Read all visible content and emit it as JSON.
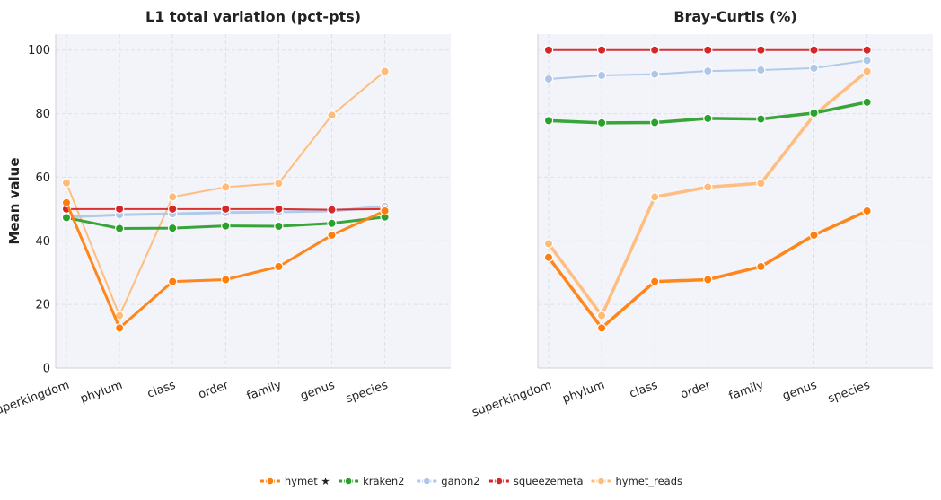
{
  "chart_data": [
    {
      "type": "line",
      "title": "L1 total variation (pct-pts)",
      "ylabel": "Mean value",
      "xlabel": "",
      "categories": [
        "superkingdom",
        "phylum",
        "class",
        "order",
        "family",
        "genus",
        "species"
      ],
      "ylim": [
        0,
        105
      ],
      "yticks": [
        0,
        20,
        40,
        60,
        80,
        100
      ],
      "grid": true,
      "series": [
        {
          "name": "hymet_reads",
          "color": "#ffbb78",
          "values": [
            58.2,
            16.5,
            53.8,
            56.9,
            58.1,
            79.5,
            93.3
          ]
        },
        {
          "name": "ganon2",
          "color": "#aec7e8",
          "values": [
            47.5,
            48.2,
            48.5,
            48.9,
            49.1,
            49.4,
            50.8
          ]
        },
        {
          "name": "squeezemeta",
          "color": "#d62728",
          "values": [
            50.0,
            50.0,
            50.0,
            50.0,
            50.0,
            49.8,
            50.0
          ]
        },
        {
          "name": "kraken2",
          "color": "#2ca02c",
          "values": [
            47.3,
            43.9,
            44.0,
            44.7,
            44.6,
            45.5,
            47.5
          ]
        },
        {
          "name": "hymet ★",
          "color": "#ff7f0e",
          "values": [
            52.0,
            12.6,
            27.2,
            27.8,
            31.9,
            41.8,
            49.4
          ]
        }
      ]
    },
    {
      "type": "line",
      "title": "Bray-Curtis (%)",
      "ylabel": "",
      "xlabel": "",
      "categories": [
        "superkingdom",
        "phylum",
        "class",
        "order",
        "family",
        "genus",
        "species"
      ],
      "ylim": [
        0,
        105
      ],
      "yticks": [
        0,
        20,
        40,
        60,
        80,
        100
      ],
      "grid": true,
      "series": [
        {
          "name": "hymet_reads",
          "color": "#ffbb78",
          "values": [
            39.1,
            16.5,
            53.8,
            56.9,
            58.1,
            79.5,
            93.3
          ]
        },
        {
          "name": "ganon2",
          "color": "#aec7e8",
          "values": [
            90.9,
            92.0,
            92.4,
            93.4,
            93.7,
            94.3,
            96.7
          ]
        },
        {
          "name": "squeezemeta",
          "color": "#d62728",
          "values": [
            100,
            100,
            100,
            100,
            100,
            100,
            100
          ]
        },
        {
          "name": "kraken2",
          "color": "#2ca02c",
          "values": [
            77.8,
            77.1,
            77.2,
            78.5,
            78.3,
            80.2,
            83.6
          ]
        },
        {
          "name": "hymet ★",
          "color": "#ff7f0e",
          "values": [
            34.8,
            12.6,
            27.2,
            27.8,
            31.9,
            41.8,
            49.4
          ]
        }
      ]
    }
  ],
  "legend": {
    "placement": "bottom-center",
    "items": [
      {
        "label": "hymet ★",
        "color": "#ff7f0e"
      },
      {
        "label": "kraken2",
        "color": "#2ca02c"
      },
      {
        "label": "ganon2",
        "color": "#aec7e8"
      },
      {
        "label": "squeezemeta",
        "color": "#d62728"
      },
      {
        "label": "hymet_reads",
        "color": "#ffbb78"
      }
    ]
  },
  "colors": {
    "plot_background": "#f3f4f9",
    "marker_edge": "#ffffff"
  }
}
